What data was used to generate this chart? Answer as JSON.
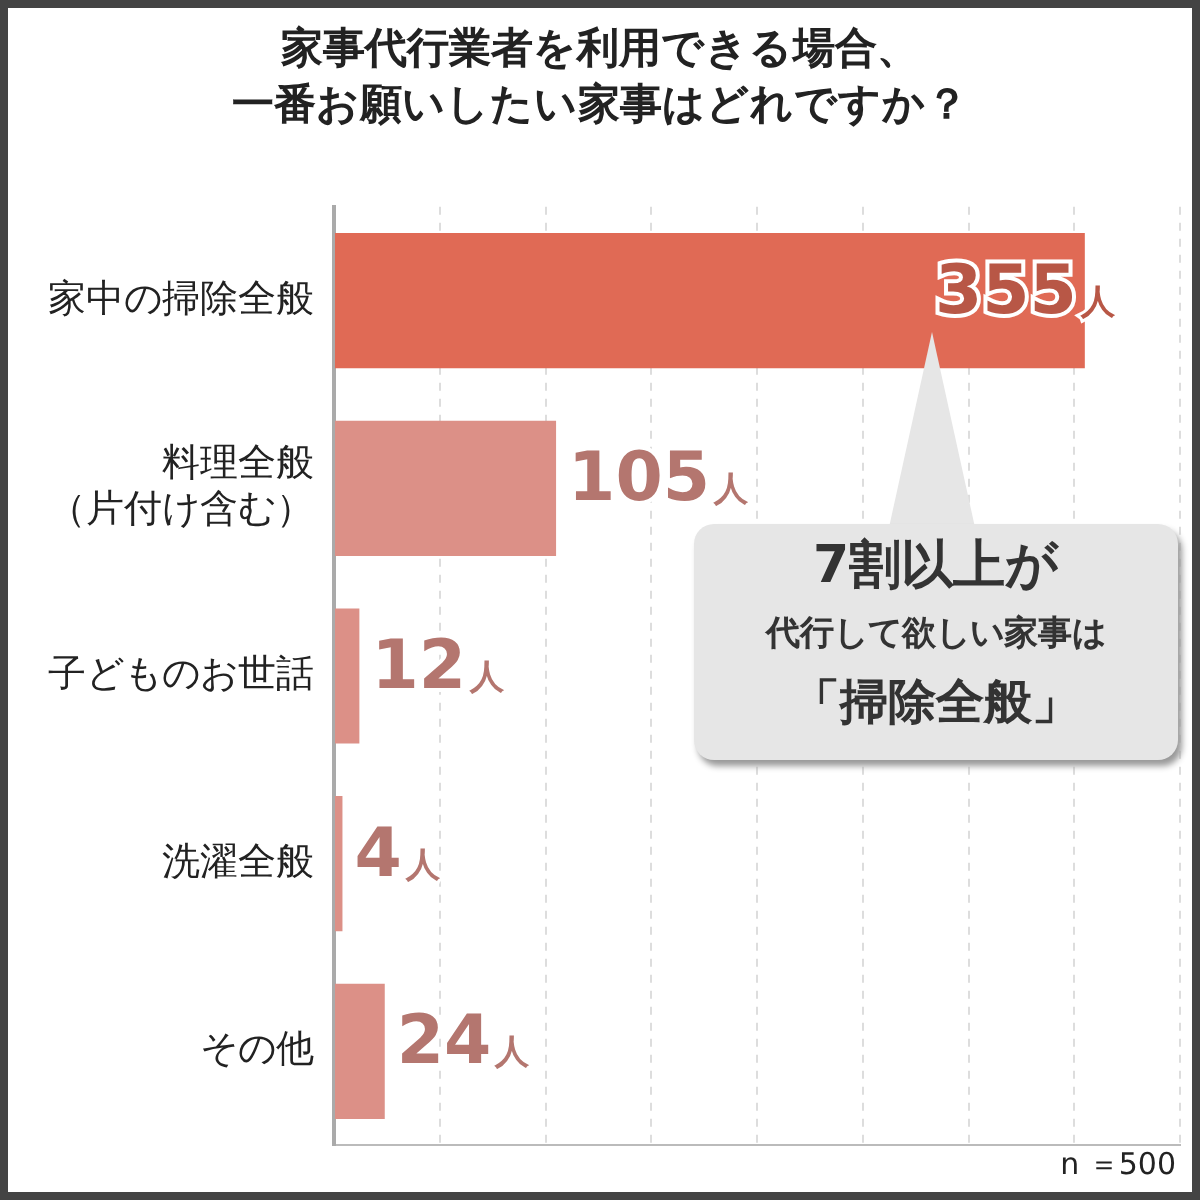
{
  "chart_data": {
    "type": "bar",
    "orientation": "horizontal",
    "title": "家事代行業者を利用できる場合、一番お願いしたい家事はどれですか？",
    "categories": [
      "家中の掃除全般",
      "料理全般（片付け含む）",
      "子どものお世話",
      "洗濯全般",
      "その他"
    ],
    "values": [
      355,
      105,
      12,
      4,
      24
    ],
    "colors": [
      "#e06a55",
      "#dc9087",
      "#dc9087",
      "#dc9087",
      "#dc9087"
    ],
    "value_labels": [
      "355人",
      "105人",
      "12人",
      "4人",
      "24人"
    ],
    "xlim": [
      0,
      400
    ],
    "xticks": [
      {
        "value": 0,
        "label": null
      },
      {
        "value": 50,
        "label": null
      },
      {
        "value": 100,
        "label": null
      },
      {
        "value": 150,
        "label": null
      },
      {
        "value": 200,
        "label": null
      },
      {
        "value": 250,
        "label": null
      },
      {
        "value": 300,
        "label": null
      },
      {
        "value": 350,
        "label": null
      },
      {
        "value": 400,
        "label": null
      }
    ],
    "tick_labels": "y",
    "grid": "x",
    "legend": false,
    "annotations": [
      "7割以上が",
      "代行して欲しい家事は",
      "「掃除全般」",
      "n ＝500"
    ]
  }
}
